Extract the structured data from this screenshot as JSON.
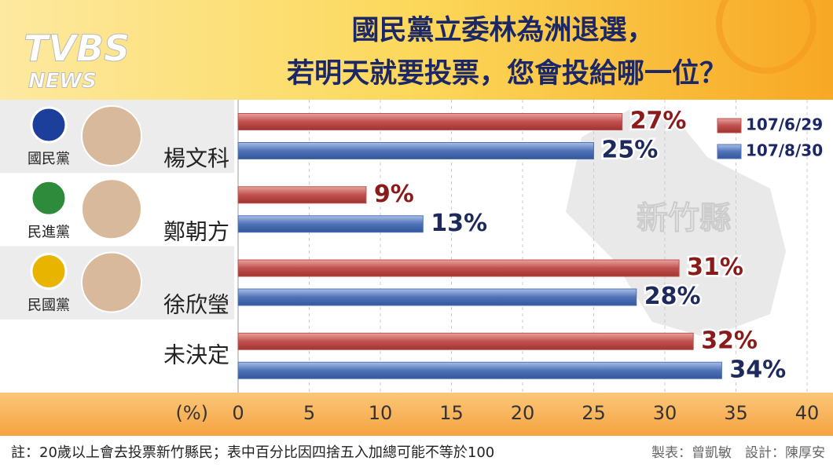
{
  "logo": {
    "brand": "TVBS",
    "sub": "NEWS"
  },
  "map_label": "新竹縣",
  "footnote": "註：20歲以上會去投票新竹縣民；表中百分比因四捨五入加總可能不等於100",
  "credit": "製表：曾凱敏　設計：陳厚安",
  "chart_data": {
    "type": "bar",
    "orientation": "horizontal",
    "title": [
      "國民黨立委林為洲退選，",
      "若明天就要投票，您會投給哪一位？"
    ],
    "x_label": "(%)",
    "categories": [
      "楊文科",
      "鄭朝方",
      "徐欣瑩",
      "未決定"
    ],
    "parties": [
      "國民黨",
      "民進黨",
      "民國黨",
      null
    ],
    "series": [
      {
        "name": "107/6/29",
        "color": "#c0504d",
        "label_color": "#8b1a1a",
        "values": [
          27,
          9,
          31,
          32
        ],
        "value_labels": [
          "27%",
          "9%",
          "31%",
          "32%"
        ]
      },
      {
        "name": "107/8/30",
        "color": "#4f73b8",
        "label_color": "#1f2a5c",
        "values": [
          25,
          13,
          28,
          34
        ],
        "value_labels": [
          "25%",
          "13%",
          "28%",
          "34%"
        ]
      }
    ],
    "xlim": [
      0,
      40
    ],
    "xticks": [
      0,
      5,
      10,
      15,
      20,
      25,
      30,
      35,
      40
    ],
    "grid": true,
    "legend": "top-right"
  }
}
